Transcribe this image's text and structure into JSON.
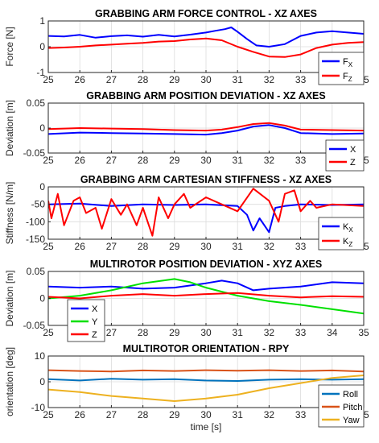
{
  "chart_data": [
    {
      "type": "line",
      "title": "GRABBING ARM FORCE CONTROL - XZ AXES",
      "xlabel": "",
      "ylabel": "Force [N]",
      "xlim": [
        25,
        35
      ],
      "ylim": [
        -1,
        1
      ],
      "xticks": [
        "25",
        "26",
        "27",
        "28",
        "29",
        "30",
        "31",
        "32",
        "33",
        "34",
        "35"
      ],
      "yticks": [
        "1",
        "0",
        "-1"
      ],
      "grid": true,
      "legend_position": "bottom-right",
      "series": [
        {
          "name": "F",
          "sub": "X",
          "color": "#0000ff",
          "x": [
            25,
            25.5,
            26,
            26.5,
            27,
            27.5,
            28,
            28.5,
            29,
            29.5,
            30,
            30.3,
            30.6,
            30.8,
            31,
            31.3,
            31.6,
            32,
            32.5,
            33,
            33.5,
            34,
            34.5,
            35
          ],
          "y": [
            0.42,
            0.4,
            0.46,
            0.35,
            0.41,
            0.44,
            0.39,
            0.46,
            0.4,
            0.47,
            0.55,
            0.62,
            0.68,
            0.75,
            0.58,
            0.3,
            0.05,
            0.0,
            0.1,
            0.42,
            0.55,
            0.6,
            0.55,
            0.5
          ]
        },
        {
          "name": "F",
          "sub": "Z",
          "color": "#ff0000",
          "x": [
            25,
            25.5,
            26,
            26.5,
            27,
            27.5,
            28,
            28.5,
            29,
            29.5,
            30,
            30.5,
            31,
            31.5,
            32,
            32.5,
            33,
            33.5,
            34,
            34.5,
            35
          ],
          "y": [
            -0.05,
            -0.03,
            0.0,
            0.05,
            0.08,
            0.12,
            0.15,
            0.2,
            0.22,
            0.28,
            0.32,
            0.25,
            0.0,
            -0.2,
            -0.38,
            -0.4,
            -0.3,
            -0.05,
            0.08,
            0.15,
            0.18
          ]
        }
      ]
    },
    {
      "type": "line",
      "title": "GRABBING ARM POSITION DEVIATION - XZ AXES",
      "xlabel": "",
      "ylabel": "Deviation [m]",
      "xlim": [
        25,
        35
      ],
      "ylim": [
        -0.05,
        0.05
      ],
      "xticks": [
        "25",
        "26",
        "27",
        "28",
        "29",
        "30",
        "31",
        "32",
        "33",
        "34",
        "35"
      ],
      "yticks": [
        "0.05",
        "0",
        "-0.05"
      ],
      "grid": true,
      "legend_position": "bottom-right",
      "series": [
        {
          "name": "X",
          "sub": "",
          "color": "#0000ff",
          "x": [
            25,
            26,
            27,
            28,
            29,
            30,
            30.5,
            31,
            31.5,
            32,
            32.5,
            33,
            34,
            35
          ],
          "y": [
            -0.012,
            -0.009,
            -0.01,
            -0.011,
            -0.012,
            -0.013,
            -0.01,
            -0.005,
            0.003,
            0.006,
            0.0,
            -0.01,
            -0.012,
            -0.011
          ]
        },
        {
          "name": "Z",
          "sub": "",
          "color": "#ff0000",
          "x": [
            25,
            26,
            27,
            28,
            29,
            30,
            30.5,
            31,
            31.5,
            32,
            32.5,
            33,
            34,
            35
          ],
          "y": [
            -0.002,
            0.0,
            -0.001,
            -0.002,
            -0.004,
            -0.005,
            -0.003,
            0.002,
            0.008,
            0.01,
            0.005,
            -0.003,
            -0.004,
            -0.005
          ]
        }
      ]
    },
    {
      "type": "line",
      "title": "GRABBING ARM CARTESIAN STIFFNESS - XZ AXES",
      "xlabel": "",
      "ylabel": "Stiffness [N/m]",
      "xlim": [
        25,
        35
      ],
      "ylim": [
        -150,
        0
      ],
      "xticks": [
        "25",
        "26",
        "27",
        "28",
        "29",
        "30",
        "31",
        "32",
        "33",
        "34",
        "35"
      ],
      "yticks": [
        "0",
        "-50",
        "-100",
        "-150"
      ],
      "grid": true,
      "legend_position": "bottom-right",
      "series": [
        {
          "name": "K",
          "sub": "X",
          "color": "#0000ff",
          "x": [
            25,
            26,
            27,
            28,
            29,
            30,
            31,
            31.3,
            31.5,
            31.7,
            32,
            32.2,
            32.5,
            33,
            34,
            35
          ],
          "y": [
            -50,
            -48,
            -55,
            -50,
            -52,
            -50,
            -55,
            -80,
            -125,
            -90,
            -130,
            -60,
            -55,
            -50,
            -52,
            -50
          ]
        },
        {
          "name": "K",
          "sub": "Z",
          "color": "#ff0000",
          "x": [
            25,
            25.1,
            25.3,
            25.5,
            25.8,
            26,
            26.2,
            26.5,
            26.7,
            27,
            27.3,
            27.5,
            27.8,
            28,
            28.3,
            28.5,
            28.8,
            29,
            29.3,
            29.5,
            30,
            30.5,
            31,
            31.5,
            32,
            32.3,
            32.5,
            32.8,
            33,
            33.3,
            33.5,
            34,
            35
          ],
          "y": [
            -40,
            -90,
            -20,
            -110,
            -40,
            -30,
            -75,
            -60,
            -120,
            -35,
            -80,
            -50,
            -110,
            -60,
            -140,
            -30,
            -90,
            -50,
            -20,
            -60,
            -30,
            -50,
            -70,
            -5,
            -40,
            -100,
            -20,
            -10,
            -70,
            -40,
            -60,
            -50,
            -55
          ]
        }
      ]
    },
    {
      "type": "line",
      "title": "MULTIROTOR POSITION DEVIATION - XYZ AXES",
      "xlabel": "",
      "ylabel": "Deviation [m]",
      "xlim": [
        25,
        35
      ],
      "ylim": [
        -0.05,
        0.05
      ],
      "xticks": [
        "25",
        "26",
        "27",
        "28",
        "29",
        "30",
        "31",
        "32",
        "33",
        "34",
        "35"
      ],
      "yticks": [
        "0.05",
        "0",
        "-0.05"
      ],
      "grid": true,
      "legend_position": "bottom-left",
      "series": [
        {
          "name": "X",
          "sub": "",
          "color": "#0000ff",
          "x": [
            25,
            26,
            27,
            28,
            29,
            30,
            30.5,
            31,
            31.5,
            32,
            33,
            34,
            35
          ],
          "y": [
            0.022,
            0.02,
            0.022,
            0.018,
            0.02,
            0.028,
            0.033,
            0.028,
            0.015,
            0.018,
            0.022,
            0.03,
            0.028
          ]
        },
        {
          "name": "Y",
          "sub": "",
          "color": "#00e000",
          "x": [
            25,
            26,
            27,
            28,
            29,
            29.5,
            30,
            31,
            32,
            33,
            34,
            35
          ],
          "y": [
            0.0,
            0.005,
            0.015,
            0.028,
            0.036,
            0.03,
            0.02,
            0.005,
            -0.005,
            -0.012,
            -0.02,
            -0.028
          ]
        },
        {
          "name": "Z",
          "sub": "",
          "color": "#ff0000",
          "x": [
            25,
            26,
            27,
            28,
            29,
            30,
            31,
            32,
            33,
            34,
            35
          ],
          "y": [
            0.003,
            0.0,
            0.005,
            0.008,
            0.005,
            0.008,
            0.01,
            0.005,
            0.002,
            0.004,
            0.003
          ]
        }
      ]
    },
    {
      "type": "line",
      "title": "MULTIROTOR ORIENTATION - RPY",
      "xlabel": "time [s]",
      "ylabel": "orientation [deg]",
      "xlim": [
        25,
        35
      ],
      "ylim": [
        -10,
        10
      ],
      "xticks": [
        "25",
        "26",
        "27",
        "28",
        "29",
        "30",
        "31",
        "32",
        "33",
        "34",
        "35"
      ],
      "yticks": [
        "10",
        "0",
        "-10"
      ],
      "grid": true,
      "legend_position": "bottom-right",
      "series": [
        {
          "name": "Roll",
          "sub": "",
          "color": "#0072bd",
          "x": [
            25,
            26,
            27,
            28,
            29,
            30,
            31,
            32,
            33,
            34,
            35
          ],
          "y": [
            1.0,
            0.5,
            1.2,
            0.8,
            1.0,
            0.5,
            0.3,
            0.8,
            1.0,
            0.8,
            1.0
          ]
        },
        {
          "name": "Pitch",
          "sub": "",
          "color": "#d95319",
          "x": [
            25,
            26,
            27,
            28,
            29,
            30,
            31,
            32,
            33,
            34,
            35
          ],
          "y": [
            4.5,
            4.2,
            4.0,
            4.4,
            4.2,
            4.5,
            4.3,
            4.5,
            4.2,
            4.4,
            4.0
          ]
        },
        {
          "name": "Yaw",
          "sub": "",
          "color": "#edb120",
          "x": [
            25,
            26,
            27,
            28,
            29,
            30,
            31,
            32,
            33,
            34,
            35
          ],
          "y": [
            -3.0,
            -4.0,
            -5.5,
            -6.5,
            -7.5,
            -6.5,
            -5.0,
            -2.5,
            -0.5,
            1.5,
            2.5
          ]
        }
      ]
    }
  ]
}
